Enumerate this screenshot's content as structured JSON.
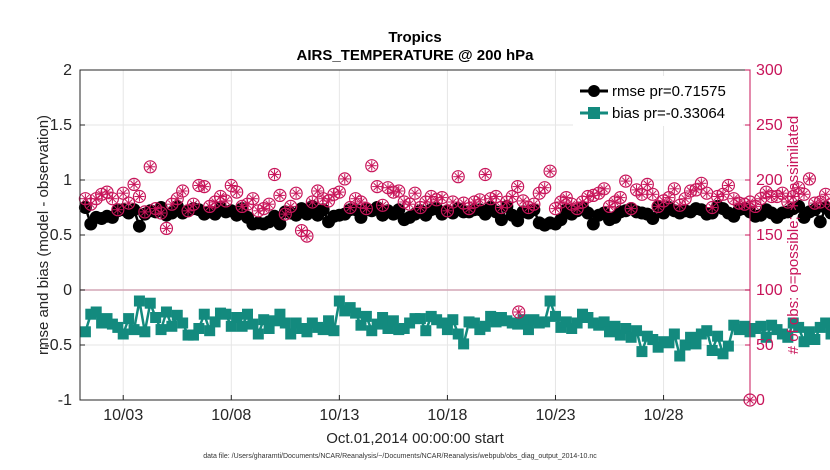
{
  "chart_data": {
    "type": "line",
    "title": "Tropics",
    "subtitle": "AIRS_TEMPERATURE @ 200 hPa",
    "xlabel": "Oct.01,2014 00:00:00 start",
    "ylabel": "rmse and bias (model - observation)",
    "y2label": "# of obs: o=possible; ∗=assimilated",
    "ylim": [
      -1,
      2
    ],
    "y2lim": [
      0,
      300
    ],
    "xlim": [
      1.0,
      32.0
    ],
    "xtick_labels": [
      "10/03",
      "10/08",
      "10/13",
      "10/18",
      "10/23",
      "10/28"
    ],
    "xtick_values": [
      3,
      8,
      13,
      18,
      23,
      28
    ],
    "ytick_labels": [
      "-1",
      "-0.5",
      "0",
      "0.5",
      "1",
      "1.5",
      "2"
    ],
    "y2tick_labels": [
      "0",
      "50",
      "100",
      "150",
      "200",
      "250",
      "300"
    ],
    "grid": true,
    "legend_position": "top-right",
    "footnote": "data file: /Users/gharamti/Documents/NCAR/Reanalysis/~/Documents/NCAR/Reanalysis/webpub/obs_diag_output_2014-10.nc",
    "colors": {
      "rmse": "#000000",
      "bias": "#138a7e",
      "obs": "#c8155a",
      "zero_line": "#d4a6b6"
    },
    "series": [
      {
        "name": "rmse pr=0.71575",
        "axis": "left",
        "marker": "circle",
        "x_start": 1.25,
        "x_step": 0.25,
        "values": [
          0.75,
          0.6,
          0.66,
          0.65,
          0.67,
          0.66,
          0.72,
          0.73,
          0.7,
          0.73,
          0.58,
          0.69,
          0.72,
          0.71,
          0.75,
          0.68,
          0.7,
          0.76,
          0.7,
          0.72,
          0.74,
          0.73,
          0.69,
          0.71,
          0.69,
          0.75,
          0.71,
          0.72,
          0.68,
          0.74,
          0.66,
          0.6,
          0.61,
          0.6,
          0.62,
          0.67,
          0.6,
          0.71,
          0.7,
          0.68,
          0.74,
          0.69,
          0.76,
          0.68,
          0.73,
          0.62,
          0.67,
          0.68,
          0.69,
          0.73,
          0.73,
          0.66,
          0.73,
          0.72,
          0.75,
          0.68,
          0.72,
          0.69,
          0.73,
          0.64,
          0.66,
          0.69,
          0.72,
          0.68,
          0.73,
          0.74,
          0.69,
          0.72,
          0.7,
          0.74,
          0.71,
          0.71,
          0.73,
          0.73,
          0.69,
          0.75,
          0.71,
          0.64,
          0.76,
          0.68,
          0.63,
          0.71,
          0.7,
          0.73,
          0.61,
          0.59,
          0.61,
          0.6,
          0.64,
          0.73,
          0.69,
          0.72,
          0.75,
          0.7,
          0.6,
          0.68,
          0.7,
          0.64,
          0.66,
          0.71,
          0.72,
          0.74,
          0.71,
          0.7,
          0.69,
          0.65,
          0.76,
          0.7,
          0.75,
          0.72,
          0.7,
          0.72,
          0.71,
          0.74,
          0.73,
          0.69,
          0.7,
          0.76,
          0.74,
          0.7,
          0.67,
          0.73,
          0.74,
          0.71,
          0.67,
          0.68,
          0.73,
          0.7,
          0.66,
          0.7,
          0.71,
          0.74,
          0.76,
          0.66,
          0.71,
          0.73,
          0.62,
          0.75,
          0.7,
          0.72,
          0.74,
          0.6,
          0.8,
          0.79,
          0.83,
          0.8,
          0.82
        ]
      },
      {
        "name": "bias pr=-0.33064",
        "axis": "left",
        "marker": "square",
        "x_start": 1.25,
        "x_step": 0.25,
        "values": [
          -0.38,
          -0.22,
          -0.2,
          -0.3,
          -0.26,
          -0.31,
          -0.34,
          -0.4,
          -0.26,
          -0.36,
          -0.1,
          -0.38,
          -0.12,
          -0.25,
          -0.36,
          -0.2,
          -0.33,
          -0.23,
          -0.3,
          -0.41,
          -0.41,
          -0.35,
          -0.22,
          -0.37,
          -0.29,
          -0.21,
          -0.22,
          -0.33,
          -0.25,
          -0.33,
          -0.22,
          -0.31,
          -0.4,
          -0.27,
          -0.35,
          -0.28,
          -0.22,
          -0.3,
          -0.4,
          -0.3,
          -0.35,
          -0.38,
          -0.3,
          -0.34,
          -0.36,
          -0.28,
          -0.37,
          -0.1,
          -0.19,
          -0.16,
          -0.21,
          -0.32,
          -0.24,
          -0.37,
          -0.31,
          -0.25,
          -0.35,
          -0.28,
          -0.36,
          -0.35,
          -0.3,
          -0.26,
          -0.26,
          -0.37,
          -0.24,
          -0.27,
          -0.3,
          -0.36,
          -0.27,
          -0.4,
          -0.49,
          -0.29,
          -0.3,
          -0.36,
          -0.33,
          -0.24,
          -0.29,
          -0.25,
          -0.28,
          -0.3,
          -0.31,
          -0.27,
          -0.36,
          -0.27,
          -0.3,
          -0.29,
          -0.1,
          -0.24,
          -0.34,
          -0.29,
          -0.35,
          -0.3,
          -0.22,
          -0.25,
          -0.3,
          -0.32,
          -0.29,
          -0.38,
          -0.33,
          -0.41,
          -0.35,
          -0.43,
          -0.37,
          -0.56,
          -0.42,
          -0.45,
          -0.52,
          -0.47,
          -0.48,
          -0.4,
          -0.6,
          -0.5,
          -0.43,
          -0.49,
          -0.4,
          -0.37,
          -0.55,
          -0.42,
          -0.58,
          -0.51,
          -0.32,
          -0.36,
          -0.33,
          -0.38,
          -0.35,
          -0.33,
          -0.43,
          -0.32,
          -0.36,
          -0.4,
          -0.43,
          -0.3,
          -0.34,
          -0.47,
          -0.38,
          -0.45,
          -0.34,
          -0.3,
          -0.4,
          -0.28,
          -0.31,
          -0.43,
          -0.28,
          -0.42,
          -0.4,
          -0.21,
          -0.33,
          -0.4
        ]
      },
      {
        "name": "obs possible",
        "axis": "right",
        "marker": "circle-open",
        "x_start": 1.25,
        "x_step": 0.25,
        "values": [
          183,
          178,
          183,
          187,
          189,
          183,
          173,
          188,
          179,
          196,
          185,
          171,
          212,
          174,
          170,
          156,
          178,
          183,
          190,
          172,
          178,
          195,
          194,
          176,
          180,
          185,
          181,
          195,
          189,
          176,
          178,
          183,
          172,
          174,
          178,
          205,
          186,
          169,
          176,
          188,
          154,
          149,
          180,
          190,
          183,
          181,
          187,
          189,
          201,
          175,
          183,
          180,
          174,
          213,
          194,
          177,
          193,
          189,
          190,
          180,
          178,
          188,
          175,
          180,
          185,
          182,
          184,
          172,
          180,
          203,
          179,
          174,
          180,
          182,
          205,
          183,
          185,
          175,
          180,
          185,
          194,
          181,
          175,
          178,
          188,
          193,
          208,
          174,
          180,
          184,
          178,
          174,
          180,
          185,
          186,
          188,
          192,
          176,
          180,
          184,
          199,
          174,
          191,
          187,
          196,
          187,
          176,
          181,
          184,
          192,
          177,
          183,
          190,
          191,
          197,
          188,
          175,
          185,
          187,
          195,
          183,
          179,
          178,
          180,
          176,
          183,
          189,
          185,
          185,
          188,
          180,
          185,
          193,
          187,
          201,
          179,
          180,
          187,
          178,
          186,
          181,
          179,
          185,
          183,
          188,
          190,
          182
        ]
      }
    ],
    "isolated_points": [
      {
        "x": 21.3,
        "y": -0.2,
        "axis": "left",
        "color": "obs"
      },
      {
        "x": 32.0,
        "y": 0,
        "axis": "right",
        "color": "obs"
      }
    ]
  }
}
